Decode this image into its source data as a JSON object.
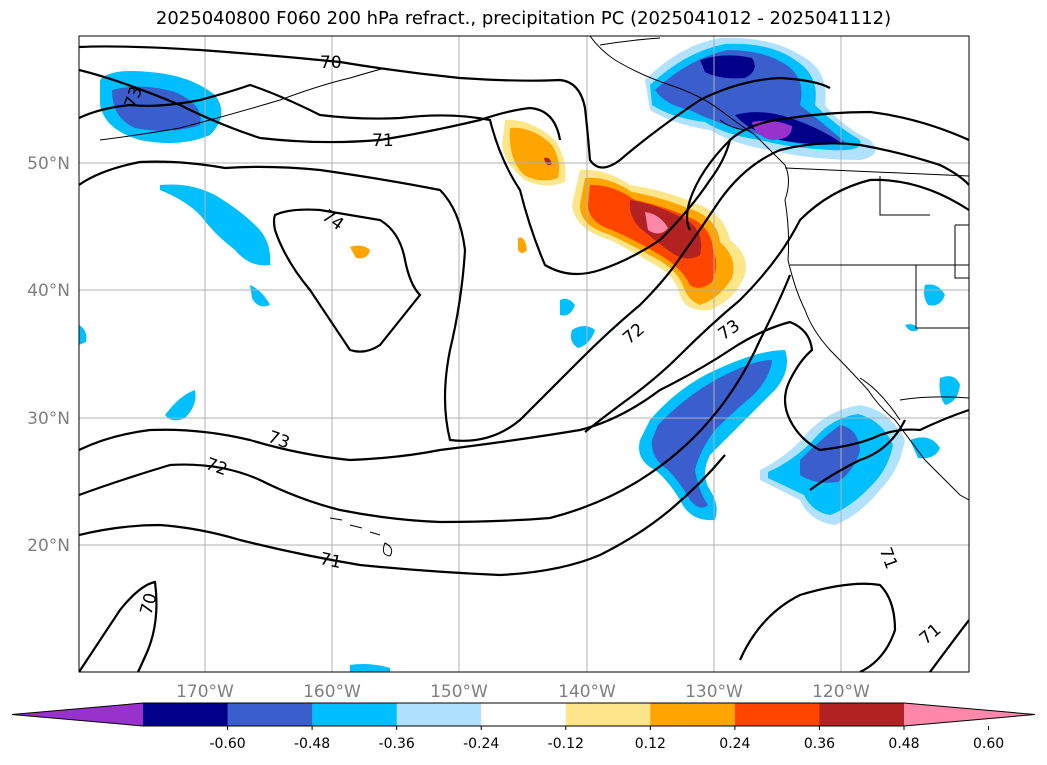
{
  "title": "2025040800 F060 200 hPa refract., precipitation PC (2025041012 - 2025041112)",
  "map": {
    "lat_labels": [
      "50°N",
      "40°N",
      "30°N",
      "20°N"
    ],
    "lon_labels": [
      "170°W",
      "160°W",
      "150°W",
      "140°W",
      "130°W",
      "120°W"
    ],
    "contour_labels": [
      "70",
      "73",
      "71",
      "74",
      "72",
      "73",
      "72",
      "73",
      "71",
      "70",
      "71",
      "71"
    ],
    "contour_color": "#000000",
    "coastline_color": "#000000",
    "grid": true
  },
  "colorbar": {
    "ticks": [
      "-0.60",
      "-0.48",
      "-0.36",
      "-0.24",
      "-0.12",
      "0.12",
      "0.24",
      "0.36",
      "0.48",
      "0.60"
    ],
    "colors": [
      "#9932cc",
      "#00008b",
      "#3a5fcd",
      "#00bfff",
      "#b0e2ff",
      "#ffffff",
      "#fde68a",
      "#ffa500",
      "#ff4500",
      "#b22222",
      "#ff88aa"
    ]
  }
}
